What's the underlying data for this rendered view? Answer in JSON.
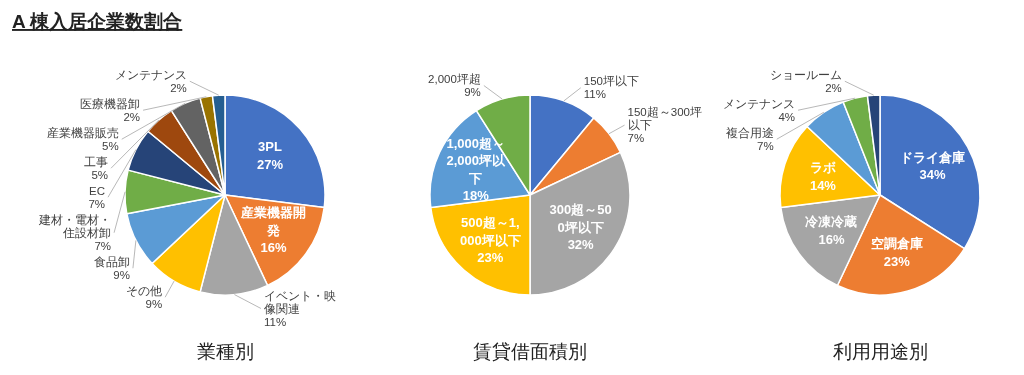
{
  "chart_data": [
    {
      "type": "pie",
      "title": "A 棟入居企業数割合",
      "subtitle": "業種別",
      "categories": [
        "3PL",
        "産業機器開発",
        "イベント・映像関連",
        "その他",
        "食品卸",
        "建材・電材・住設材卸",
        "EC",
        "工事",
        "産業機器販売",
        "医療機器卸",
        "メンテナンス"
      ],
      "values": [
        27,
        16,
        11,
        9,
        9,
        7,
        7,
        5,
        5,
        2,
        2
      ],
      "value_labels": [
        "27%",
        "16%",
        "11%",
        "9%",
        "9%",
        "7%",
        "7%",
        "5%",
        "5%",
        "2%",
        "2%"
      ],
      "colors": [
        "#4472c4",
        "#ed7d31",
        "#a5a5a5",
        "#ffc000",
        "#5b9bd5",
        "#70ad47",
        "#264478",
        "#9e480e",
        "#636363",
        "#997300",
        "#255e91"
      ]
    },
    {
      "type": "pie",
      "subtitle": "賃貸借面積別",
      "categories": [
        "150坪以下",
        "150超～300坪以下",
        "300超～500坪以下",
        "500超～1,000坪以下",
        "1,000超～2,000坪以下",
        "2,000坪超"
      ],
      "values": [
        11,
        7,
        32,
        23,
        18,
        9
      ],
      "value_labels": [
        "11%",
        "7%",
        "32%",
        "23%",
        "18%",
        "9%"
      ],
      "colors": [
        "#4472c4",
        "#ed7d31",
        "#a5a5a5",
        "#ffc000",
        "#5b9bd5",
        "#70ad47"
      ]
    },
    {
      "type": "pie",
      "subtitle": "利用用途別",
      "categories": [
        "ドライ倉庫",
        "空調倉庫",
        "冷凍冷蔵",
        "ラボ",
        "複合用途",
        "メンテナンス",
        "ショールーム"
      ],
      "values": [
        34,
        23,
        16,
        14,
        7,
        4,
        2
      ],
      "value_labels": [
        "34%",
        "23%",
        "16%",
        "14%",
        "7%",
        "4%",
        "2%"
      ],
      "colors": [
        "#4472c4",
        "#ed7d31",
        "#a5a5a5",
        "#ffc000",
        "#5b9bd5",
        "#70ad47",
        "#264478"
      ]
    }
  ]
}
